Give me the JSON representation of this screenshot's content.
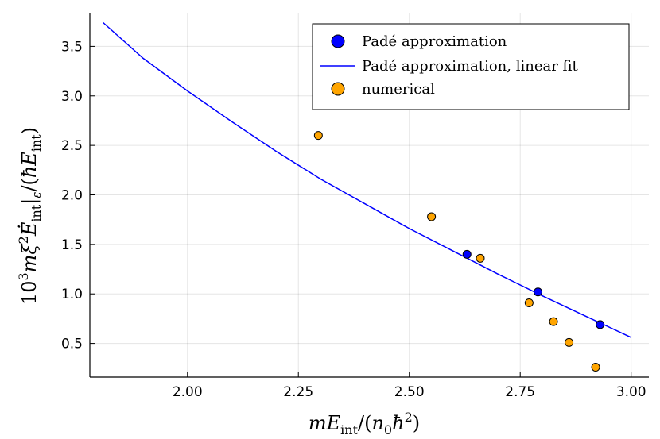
{
  "chart_data": {
    "type": "scatter",
    "xlabel": "mE_int/(n_0ħ^2)",
    "ylabel": "10^3 mξ^2 Ė_int|_ε/(ħE_int)",
    "xlim": [
      1.78,
      3.04
    ],
    "ylim": [
      0.16,
      3.84
    ],
    "xticks": [
      2.0,
      2.25,
      2.5,
      2.75,
      3.0
    ],
    "xtick_labels": [
      "2.00",
      "2.25",
      "2.50",
      "2.75",
      "3.00"
    ],
    "yticks": [
      0.5,
      1.0,
      1.5,
      2.0,
      2.5,
      3.0,
      3.5
    ],
    "ytick_labels": [
      "0.5",
      "1.0",
      "1.5",
      "2.0",
      "2.5",
      "3.0",
      "3.5"
    ],
    "grid": true,
    "legend_position": "top-right",
    "series": [
      {
        "name": "Padé approximation",
        "kind": "scatter",
        "color": "#0000ff",
        "points": [
          [
            2.63,
            1.4
          ],
          [
            2.79,
            1.02
          ],
          [
            2.93,
            0.69
          ]
        ]
      },
      {
        "name": "Padé approximation, linear fit",
        "kind": "line",
        "color": "#0000ff",
        "points": [
          [
            1.81,
            3.74
          ],
          [
            1.9,
            3.38
          ],
          [
            2.0,
            3.05
          ],
          [
            2.1,
            2.74
          ],
          [
            2.2,
            2.44
          ],
          [
            2.3,
            2.16
          ],
          [
            2.4,
            1.91
          ],
          [
            2.5,
            1.66
          ],
          [
            2.6,
            1.43
          ],
          [
            2.7,
            1.2
          ],
          [
            2.8,
            0.98
          ],
          [
            2.9,
            0.77
          ],
          [
            3.0,
            0.56
          ]
        ]
      },
      {
        "name": "numerical",
        "kind": "scatter",
        "color": "#ffa500",
        "points": [
          [
            2.295,
            2.6
          ],
          [
            2.55,
            1.78
          ],
          [
            2.66,
            1.36
          ],
          [
            2.77,
            0.91
          ],
          [
            2.825,
            0.72
          ],
          [
            2.86,
            0.51
          ],
          [
            2.92,
            0.26
          ]
        ]
      }
    ]
  }
}
